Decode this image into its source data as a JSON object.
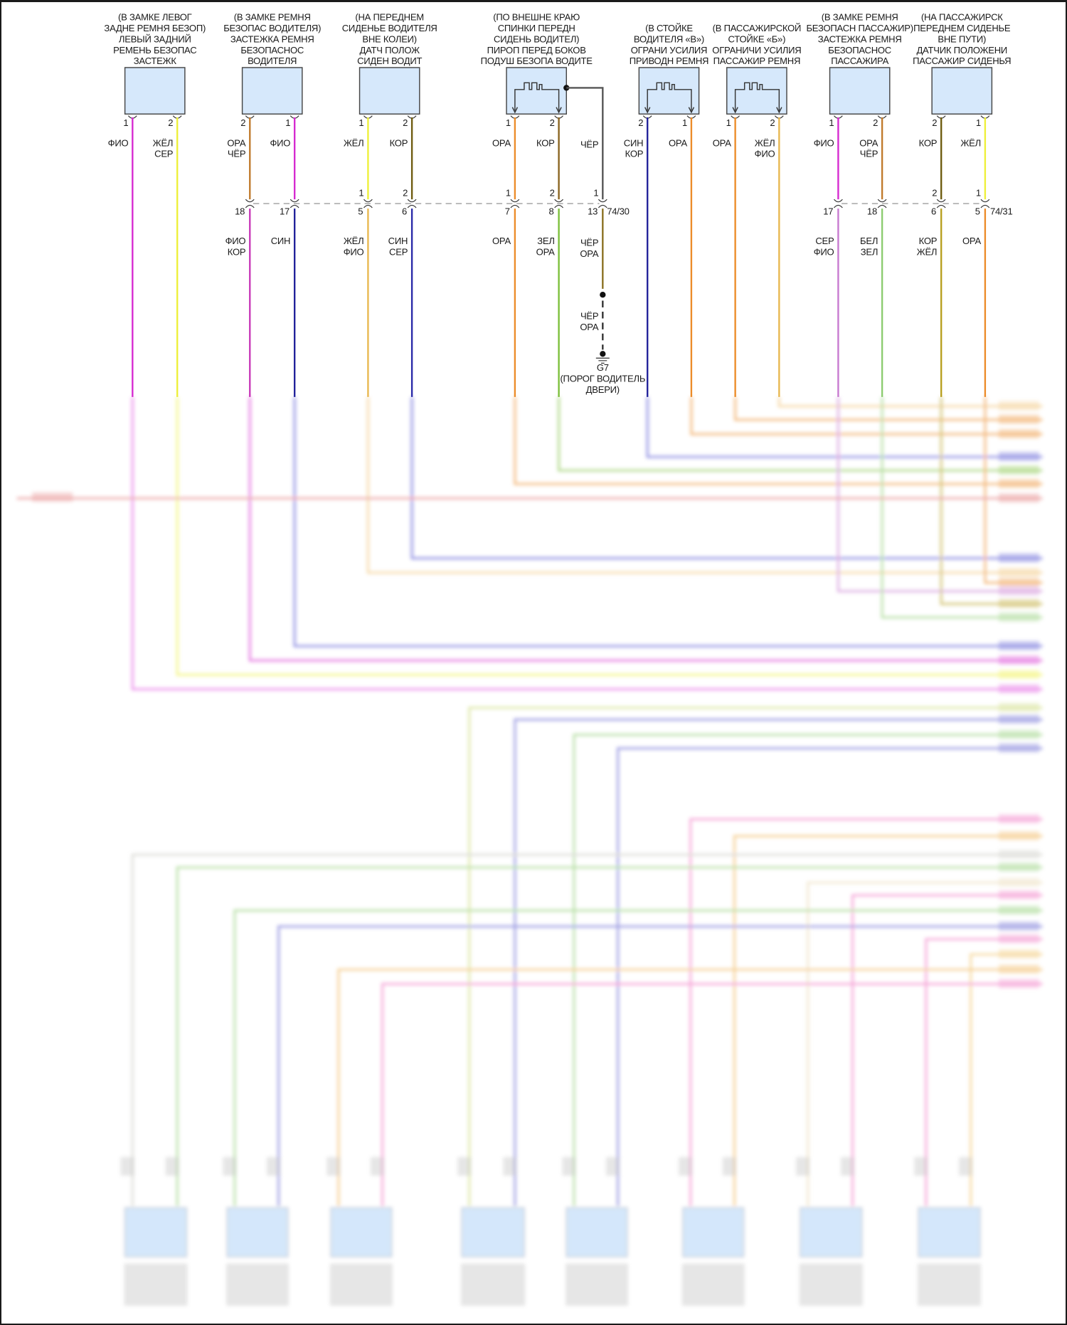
{
  "colors": {
    "magenta": "#d62ad0",
    "yellow": "#eef03a",
    "brown_orange": "#c07a2c",
    "blue": "#22229a",
    "olive": "#6e5c10",
    "orange": "#ec8c2a",
    "green": "#7cbf3a",
    "light_orange": "#e8b850",
    "light_purple": "#c87ad0",
    "light_green": "#8ccc70",
    "olive_yellow": "#b8a020",
    "ground_wire": "#555555",
    "box_fill": "#d6e8fb"
  },
  "components": [
    {
      "label": [
        "(В ЗАМКЕ ЛЕВОГ",
        "ЗАДНЕ РЕМНЯ БЕЗОП)",
        "ЛЕВЫЙ ЗАДНИЙ",
        "РЕМЕНЬ БЕЗОПАС",
        "ЗАСТЕЖК"
      ],
      "symbol": "none",
      "pins": [
        {
          "pin": "1",
          "wire": [
            "ФИО"
          ],
          "color": "#d62ad0"
        },
        {
          "pin": "2",
          "wire": [
            "ЖЁЛ",
            "СЕР"
          ],
          "color": "#eef03a"
        }
      ]
    },
    {
      "label": [
        "(В ЗАМКЕ РЕМНЯ",
        "БЕЗОПАС ВОДИТЕЛЯ)",
        "ЗАСТЕЖКА РЕМНЯ",
        "БЕЗОПАСНОС",
        "ВОДИТЕЛЯ"
      ],
      "symbol": "none",
      "pins": [
        {
          "pin": "2",
          "wire": [
            "ОРА",
            "ЧЁР"
          ],
          "color": "#c07a2c"
        },
        {
          "pin": "1",
          "wire": [
            "ФИО"
          ],
          "color": "#d62ad0"
        }
      ]
    },
    {
      "label": [
        "(НА ПЕРЕДНЕМ",
        "СИДЕНЬЕ ВОДИТЕЛЯ",
        "ВНЕ КОЛЕИ)",
        "ДАТЧ ПОЛОЖ",
        "СИДЕН ВОДИТ"
      ],
      "symbol": "none",
      "pins": [
        {
          "pin": "1",
          "wire": [
            "ЖЁЛ"
          ],
          "color": "#eef03a"
        },
        {
          "pin": "2",
          "wire": [
            "КОР"
          ],
          "color": "#6e5c10"
        }
      ]
    },
    {
      "label": [
        "(ПО ВНЕШНЕ КРАЮ",
        "СПИНКИ ПЕРЕДН",
        "СИДЕНЬ ВОДИТЕЛ)",
        "ПИРОП ПЕРЕД БОКОВ",
        "ПОДУШ БЕЗОПА ВОДИТЕ"
      ],
      "symbol": "squib",
      "pins": [
        {
          "pin": "1",
          "wire": [
            "ОРА"
          ],
          "color": "#ec8c2a"
        },
        {
          "pin": "2",
          "wire": [
            "КОР"
          ],
          "color": "#8a6420"
        }
      ],
      "ground_wire": {
        "wire": [
          "ЧЁР"
        ],
        "color": "#555555"
      }
    },
    {
      "label": [
        "(В СТОЙКЕ",
        "ВОДИТЕЛЯ «В»)",
        "ОГРАНИ УСИЛИЯ",
        "ПРИВОДН РЕМНЯ"
      ],
      "symbol": "squib",
      "pins": [
        {
          "pin": "2",
          "wire": [
            "СИН",
            "КОР"
          ],
          "color": "#22229a"
        },
        {
          "pin": "1",
          "wire": [
            "ОРА"
          ],
          "color": "#ec8c2a"
        }
      ]
    },
    {
      "label": [
        "(В ПАССАЖИРСКОЙ",
        "СТОЙКЕ «Б»)",
        "ОГРАНИЧИ УСИЛИЯ",
        "ПАССАЖИР РЕМНЯ"
      ],
      "symbol": "squib",
      "pins": [
        {
          "pin": "1",
          "wire": [
            "ОРА"
          ],
          "color": "#ec8c2a"
        },
        {
          "pin": "2",
          "wire": [
            "ЖЁЛ",
            "ФИО"
          ],
          "color": "#e8b850"
        }
      ]
    },
    {
      "label": [
        "(В ЗАМКЕ РЕМНЯ",
        "БЕЗОПАСН ПАССАЖИР)",
        "ЗАСТЕЖКА РЕМНЯ",
        "БЕЗОПАСНОС",
        "ПАССАЖИРА"
      ],
      "symbol": "none",
      "pins": [
        {
          "pin": "1",
          "wire": [
            "ФИО"
          ],
          "color": "#d62ad0"
        },
        {
          "pin": "2",
          "wire": [
            "ОРА",
            "ЧЁР"
          ],
          "color": "#c07a2c"
        }
      ]
    },
    {
      "label": [
        "(НА ПАССАЖИРСК",
        "ПЕРЕДНЕМ СИДЕНЬЕ",
        "ВНЕ ПУТИ)",
        "ДАТЧИК ПОЛОЖЕНИ",
        "ПАССАЖИР СИДЕНЬЯ"
      ],
      "symbol": "none",
      "pins": [
        {
          "pin": "2",
          "wire": [
            "КОР"
          ],
          "color": "#6e5c10"
        },
        {
          "pin": "1",
          "wire": [
            "ЖЁЛ"
          ],
          "color": "#eef03a"
        }
      ]
    }
  ],
  "connectors": [
    {
      "name": "74/30",
      "pins": [
        {
          "top": "",
          "bottom": "18",
          "wire": [
            "ФИО",
            "КОР"
          ],
          "color": "#c838b8"
        },
        {
          "top": "",
          "bottom": "17",
          "wire": [
            "СИН"
          ],
          "color": "#22229a"
        },
        {
          "top": "1",
          "bottom": "5",
          "wire": [
            "ЖЁЛ",
            "ФИО"
          ],
          "color": "#e8b850"
        },
        {
          "top": "2",
          "bottom": "6",
          "wire": [
            "СИН",
            "СЕР"
          ],
          "color": "#2a2aa8"
        },
        {
          "top": "1",
          "bottom": "7",
          "wire": [
            "ОРА"
          ],
          "color": "#ec8c2a"
        },
        {
          "top": "2",
          "bottom": "8",
          "wire": [
            "ЗЕЛ",
            "ОРА"
          ],
          "color": "#7cbf3a"
        },
        {
          "top": "1",
          "bottom": "13",
          "wire": [
            "ЧЁР",
            "ОРА"
          ],
          "color": "#8a7020"
        }
      ]
    },
    {
      "name": "74/31",
      "pins": [
        {
          "top": "",
          "bottom": "17",
          "wire": [
            "СЕР",
            "ФИО"
          ],
          "color": "#c87ad0"
        },
        {
          "top": "",
          "bottom": "18",
          "wire": [
            "БЕЛ",
            "ЗЕЛ"
          ],
          "color": "#8ccc70"
        },
        {
          "top": "2",
          "bottom": "6",
          "wire": [
            "КОР",
            "ЖЁЛ"
          ],
          "color": "#b8a020"
        },
        {
          "top": "1",
          "bottom": "5",
          "wire": [
            "ОРА"
          ],
          "color": "#ec8c2a"
        }
      ]
    }
  ],
  "ground": {
    "wire": [
      "ЧЁР",
      "ОРА"
    ],
    "name": "G7",
    "location": [
      "(ПОРОГ ВОДИТЕЛЬ",
      "ДВЕРИ)"
    ]
  }
}
